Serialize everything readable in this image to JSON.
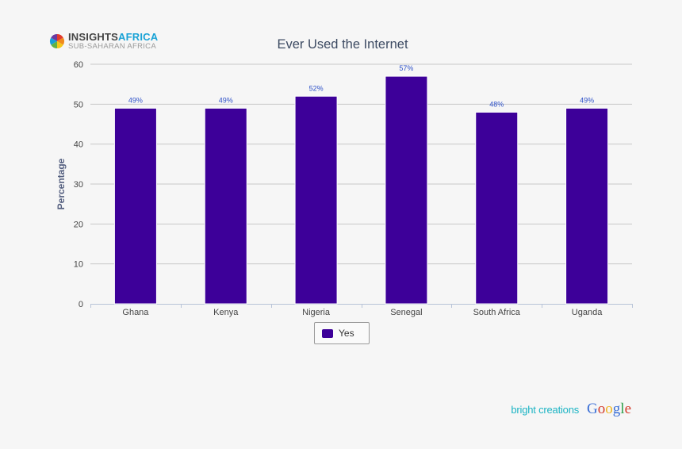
{
  "logo": {
    "brand_part1": "INSIGHTS",
    "brand_part2": "AFRICA",
    "subtitle": "SUB-SAHARAN AFRICA",
    "icon": "color-wheel-icon"
  },
  "chart_data": {
    "type": "bar",
    "title": "Ever Used the Internet",
    "xlabel": "",
    "ylabel": "Percentage",
    "categories": [
      "Ghana",
      "Kenya",
      "Nigeria",
      "Senegal",
      "South Africa",
      "Uganda"
    ],
    "series": [
      {
        "name": "Yes",
        "values": [
          49,
          49,
          52,
          57,
          48,
          49
        ],
        "labels": [
          "49%",
          "49%",
          "52%",
          "57%",
          "48%",
          "49%"
        ],
        "color": "#3d0099"
      }
    ],
    "ylim": [
      0,
      60
    ],
    "yticks": [
      0,
      10,
      20,
      30,
      40,
      50,
      60
    ],
    "grid": true,
    "legend_position": "bottom-center",
    "colors": {
      "data_label": "#2f52c8",
      "axis_text": "#444444",
      "title": "#3c4a62"
    }
  },
  "credits": {
    "provider": "bright creations",
    "google": [
      "G",
      "o",
      "o",
      "g",
      "l",
      "e"
    ],
    "google_colors": [
      "#3b6fd6",
      "#d33c2c",
      "#efb521",
      "#3b6fd6",
      "#2a9d48",
      "#d33c2c"
    ]
  }
}
